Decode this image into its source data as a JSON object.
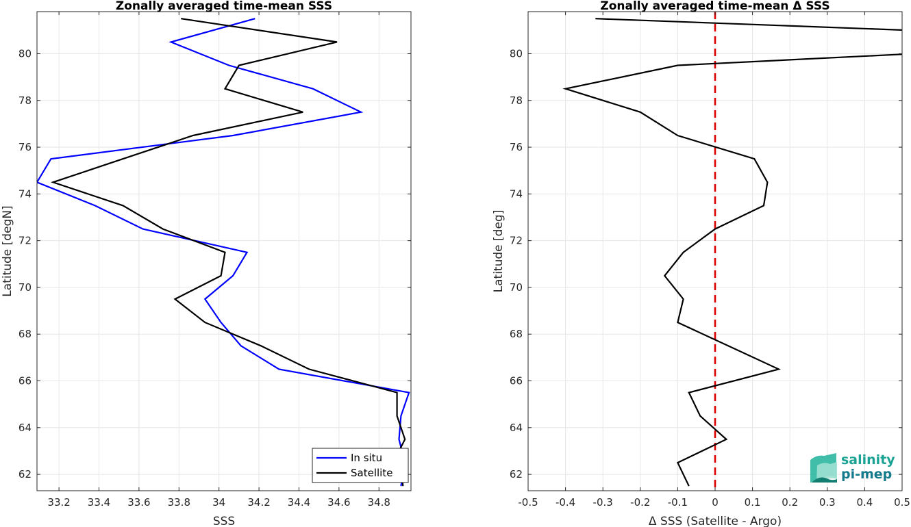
{
  "chart_data": [
    {
      "type": "line",
      "title": "Zonally averaged time-mean SSS",
      "xlabel": "SSS",
      "ylabel": "Latitude [degN]",
      "xlim": [
        33.09,
        34.96
      ],
      "ylim": [
        61.3,
        81.8
      ],
      "xticks": [
        33.2,
        33.4,
        33.6,
        33.8,
        34,
        34.2,
        34.4,
        34.6,
        34.8
      ],
      "yticks": [
        62,
        64,
        66,
        68,
        70,
        72,
        74,
        76,
        78,
        80
      ],
      "grid": true,
      "legend": "bottom-right",
      "series": [
        {
          "name": "In situ",
          "color": "#0000ff",
          "x": [
            34.91,
            34.93,
            34.9,
            34.91,
            34.95,
            34.95,
            34.3,
            34.11,
            34.01,
            33.93,
            34.07,
            34.14,
            33.62,
            33.38,
            33.09,
            33.16,
            34.07,
            34.71,
            34.47,
            34.05,
            33.76,
            34.18
          ],
          "y": [
            61.5,
            62.5,
            63.5,
            64.5,
            65.5,
            65.5,
            66.5,
            67.5,
            68.5,
            69.5,
            70.5,
            71.5,
            72.5,
            73.5,
            74.5,
            75.5,
            76.5,
            77.5,
            78.5,
            79.5,
            80.5,
            81.5
          ]
        },
        {
          "name": "Satellite",
          "color": "#000000",
          "x": [
            34.92,
            34.91,
            34.9,
            34.93,
            34.89,
            34.89,
            34.45,
            34.21,
            33.93,
            33.78,
            34.01,
            34.03,
            33.72,
            33.52,
            33.17,
            33.52,
            33.87,
            34.42,
            34.03,
            34.1,
            34.59,
            33.81
          ],
          "y": [
            61.5,
            62.5,
            63.0,
            63.5,
            64.5,
            65.5,
            66.5,
            67.5,
            68.5,
            69.5,
            70.5,
            71.5,
            72.5,
            73.5,
            74.5,
            75.5,
            76.5,
            77.5,
            78.5,
            79.5,
            80.5,
            81.5
          ]
        }
      ]
    },
    {
      "type": "line",
      "title": "Zonally averaged time-mean Δ SSS",
      "xlabel": "Δ SSS (Satellite - Argo)",
      "ylabel": "Latitude [deg]",
      "xlim": [
        -0.5,
        0.5
      ],
      "ylim": [
        61.3,
        81.8
      ],
      "xticks": [
        -0.5,
        -0.4,
        -0.3,
        -0.2,
        -0.1,
        0,
        0.1,
        0.2,
        0.3,
        0.4,
        0.5
      ],
      "yticks": [
        62,
        64,
        66,
        68,
        70,
        72,
        74,
        76,
        78,
        80
      ],
      "grid": true,
      "series": [
        {
          "color": "#000000",
          "x": [
            -0.07,
            -0.1,
            0.03,
            -0.04,
            -0.07,
            0.17,
            -0.1,
            -0.085,
            -0.135,
            -0.085,
            0.0,
            0.13,
            0.14,
            0.105,
            -0.1,
            -0.2,
            -0.4,
            -0.1,
            0.53,
            0.52,
            -0.32
          ],
          "y": [
            61.5,
            62.5,
            63.5,
            64.5,
            65.5,
            66.5,
            68.5,
            69.5,
            70.5,
            71.5,
            72.5,
            73.5,
            74.5,
            75.5,
            76.5,
            77.5,
            78.5,
            79.5,
            80.0,
            81.0,
            81.5
          ]
        }
      ],
      "reference_line": {
        "x": 0,
        "color": "#dd0000",
        "style": "dashed"
      }
    }
  ],
  "logo": {
    "line1": "salinity",
    "line2": "pi-mep"
  }
}
